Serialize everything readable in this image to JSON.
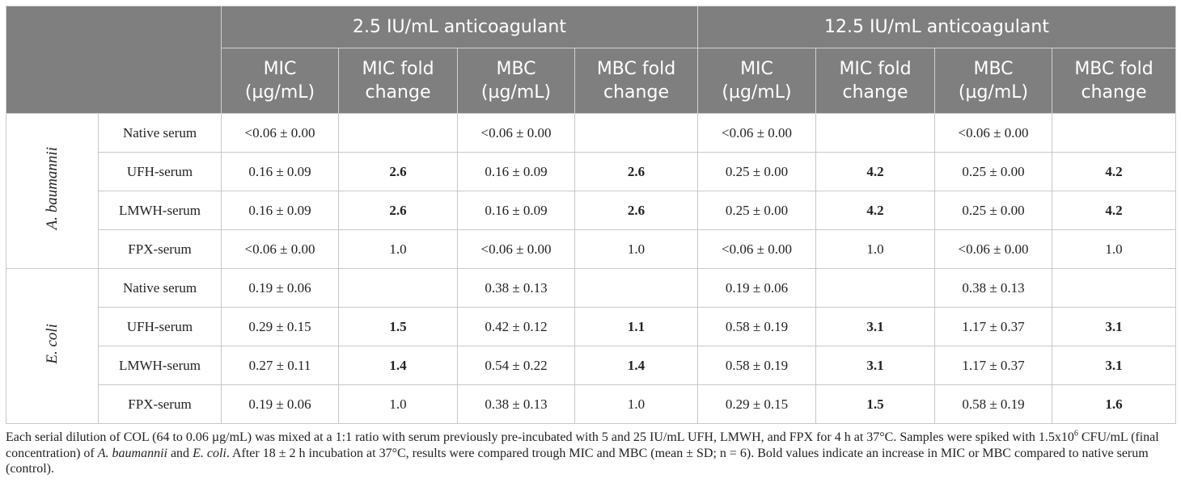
{
  "header": {
    "group_labels": [
      "2.5 IU/mL anticoagulant",
      "12.5 IU/mL anticoagulant"
    ],
    "columns": [
      "MIC\n(µg/mL)",
      "MIC fold\nchange",
      "MBC\n(µg/mL)",
      "MBC fold\nchange",
      "MIC\n(µg/mL)",
      "MIC fold\nchange",
      "MBC\n(µg/mL)",
      "MBC fold\nchange"
    ]
  },
  "groups": [
    {
      "species": "A. baumannii",
      "rows": [
        {
          "label": "Native serum",
          "cells": [
            "<0.06 ± 0.00",
            null,
            "<0.06 ± 0.00",
            null,
            "<0.06 ± 0.00",
            null,
            "<0.06 ± 0.00",
            null
          ],
          "bold": []
        },
        {
          "label": "UFH-serum",
          "cells": [
            "0.16 ± 0.09",
            "2.6",
            "0.16 ± 0.09",
            "2.6",
            "0.25 ± 0.00",
            "4.2",
            "0.25 ± 0.00",
            "4.2"
          ],
          "bold": [
            1,
            3,
            5,
            7
          ]
        },
        {
          "label": "LMWH-serum",
          "cells": [
            "0.16 ± 0.09",
            "2.6",
            "0.16 ± 0.09",
            "2.6",
            "0.25 ± 0.00",
            "4.2",
            "0.25 ± 0.00",
            "4.2"
          ],
          "bold": [
            1,
            3,
            5,
            7
          ]
        },
        {
          "label": "FPX-serum",
          "cells": [
            "<0.06 ± 0.00",
            "1.0",
            "<0.06 ± 0.00",
            "1.0",
            "<0.06 ± 0.00",
            "1.0",
            "<0.06 ± 0.00",
            "1.0"
          ],
          "bold": []
        }
      ]
    },
    {
      "species": "E. coli",
      "rows": [
        {
          "label": "Native serum",
          "cells": [
            "0.19 ± 0.06",
            null,
            "0.38 ± 0.13",
            null,
            "0.19 ± 0.06",
            null,
            "0.38 ± 0.13",
            null
          ],
          "bold": []
        },
        {
          "label": "UFH-serum",
          "cells": [
            "0.29 ± 0.15",
            "1.5",
            "0.42 ± 0.12",
            "1.1",
            "0.58 ± 0.19",
            "3.1",
            "1.17 ± 0.37",
            "3.1"
          ],
          "bold": [
            1,
            3,
            5,
            7
          ]
        },
        {
          "label": "LMWH-serum",
          "cells": [
            "0.27 ± 0.11",
            "1.4",
            "0.54 ± 0.22",
            "1.4",
            "0.58 ± 0.19",
            "3.1",
            "1.17 ± 0.37",
            "3.1"
          ],
          "bold": [
            1,
            3,
            5,
            7
          ]
        },
        {
          "label": "FPX-serum",
          "cells": [
            "0.19 ± 0.06",
            "1.0",
            "0.38 ± 0.13",
            "1.0",
            "0.29 ± 0.15",
            "1.5",
            "0.58 ± 0.19",
            "1.6"
          ],
          "bold": [
            5,
            7
          ]
        }
      ]
    }
  ],
  "footnote": {
    "parts": [
      "Each serial dilution of COL (64 to 0.06 µg/mL) was mixed at a 1:1 ratio with serum previously pre-incubated with 5 and 25 IU/mL UFH, LMWH, and FPX for 4 h at 37°C. Samples were spiked with 1.5x10",
      "6",
      " CFU/mL (final concentration) of ",
      "A. baumannii",
      " and ",
      "E. coli",
      ". After 18 ± 2 h incubation at 37°C, results were compared trough MIC and MBC (mean ± SD; n = 6). Bold values indicate an increase in MIC or MBC compared to native serum (control)."
    ]
  }
}
